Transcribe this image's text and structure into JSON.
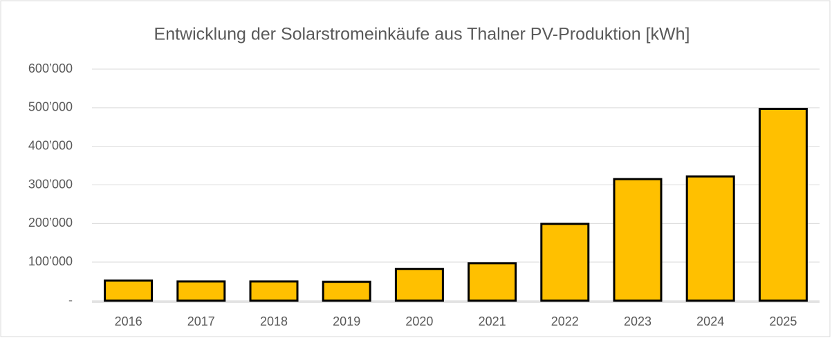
{
  "chart_data": {
    "type": "bar",
    "title": "Entwicklung der Solarstromeinkäufe aus Thalner PV-Produktion [kWh]",
    "categories": [
      "2016",
      "2017",
      "2018",
      "2019",
      "2020",
      "2021",
      "2022",
      "2023",
      "2024",
      "2025"
    ],
    "values": [
      52000,
      50000,
      50000,
      49000,
      82000,
      97000,
      199000,
      315000,
      322000,
      497000
    ],
    "color": "#ffc000",
    "ylim": [
      0,
      600000
    ],
    "yticks": [
      {
        "value": 0,
        "label": "-"
      },
      {
        "value": 100000,
        "label": "100’000"
      },
      {
        "value": 200000,
        "label": "200’000"
      },
      {
        "value": 300000,
        "label": "300’000"
      },
      {
        "value": 400000,
        "label": "400’000"
      },
      {
        "value": 500000,
        "label": "500’000"
      },
      {
        "value": 600000,
        "label": "600’000"
      }
    ],
    "grid": true
  }
}
